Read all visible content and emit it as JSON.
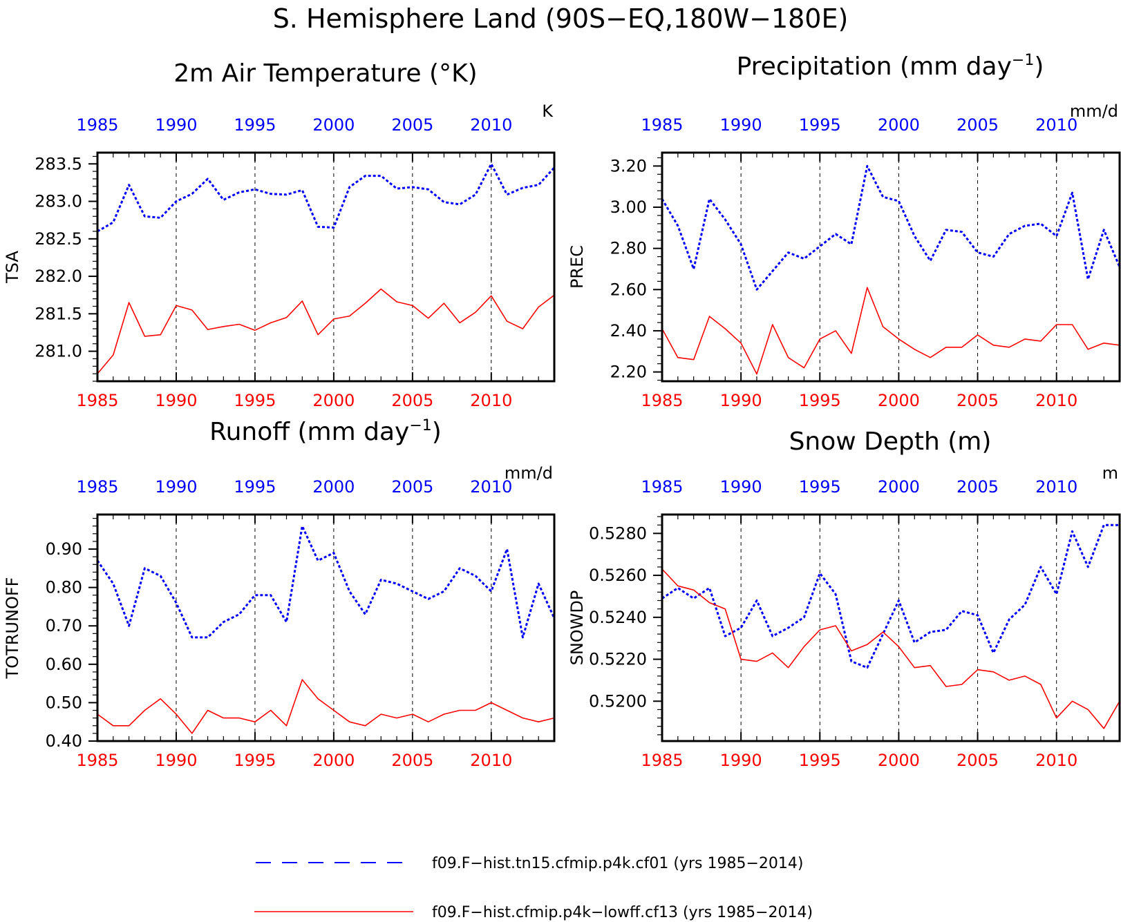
{
  "figure": {
    "title": "S. Hemisphere Land (90S−EQ,180W−180E)"
  },
  "colors": {
    "case1": "#0000ff",
    "case2": "#ff0000",
    "axis": "#000000"
  },
  "legend": {
    "case1": "f09.F−hist.tn15.cfmip.p4k.cf01 (yrs 1985−2014)",
    "case2": "f09.F−hist.cfmip.p4k−lowff.cf13 (yrs 1985−2014)"
  },
  "chart_data": [
    {
      "type": "line",
      "title": "2m Air Temperature (°K)",
      "title_sup": "",
      "title_suffix": "",
      "ylabel": "TSA",
      "units": "K",
      "xlim": [
        1985,
        2014
      ],
      "ylim": [
        280.6,
        283.65
      ],
      "yticks": [
        281.0,
        281.5,
        282.0,
        282.5,
        283.0,
        283.5
      ],
      "ytick_labels": [
        "281.0",
        "281.5",
        "282.0",
        "282.5",
        "283.0",
        "283.5"
      ],
      "yminor": 0.1,
      "xticks": [
        1985,
        1990,
        1995,
        2000,
        2005,
        2010
      ],
      "xtick_labels": [
        "1985",
        "1990",
        "1995",
        "2000",
        "2005",
        "2010"
      ],
      "x": [
        1985,
        1986,
        1987,
        1988,
        1989,
        1990,
        1991,
        1992,
        1993,
        1994,
        1995,
        1996,
        1997,
        1998,
        1999,
        2000,
        2001,
        2002,
        2003,
        2004,
        2005,
        2006,
        2007,
        2008,
        2009,
        2010,
        2011,
        2012,
        2013,
        2014
      ],
      "series": [
        {
          "name": "f09.F−hist.tn15.cfmip.p4k.cf01 (yrs 1985−2014)",
          "style": "dashed",
          "values": [
            282.6,
            282.72,
            283.22,
            282.8,
            282.78,
            283.0,
            283.1,
            283.3,
            283.02,
            283.12,
            283.16,
            283.1,
            283.09,
            283.15,
            282.66,
            282.65,
            283.19,
            283.34,
            283.34,
            283.17,
            283.19,
            283.16,
            282.99,
            282.96,
            283.09,
            283.5,
            283.09,
            283.18,
            283.22,
            283.45
          ]
        },
        {
          "name": "f09.F−hist.cfmip.p4k−lowff.cf13 (yrs 1985−2014)",
          "style": "solid",
          "values": [
            280.7,
            280.95,
            281.65,
            281.2,
            281.22,
            281.61,
            281.55,
            281.29,
            281.33,
            281.36,
            281.28,
            281.38,
            281.45,
            281.67,
            281.22,
            281.43,
            281.47,
            281.64,
            281.83,
            281.66,
            281.61,
            281.44,
            281.64,
            281.38,
            281.52,
            281.74,
            281.4,
            281.3,
            281.59,
            281.75
          ]
        }
      ]
    },
    {
      "type": "line",
      "title": "Precipitation (mm day",
      "title_sup": "−1",
      "title_suffix": ")",
      "ylabel": "PREC",
      "units": "mm/d",
      "xlim": [
        1985,
        2014
      ],
      "ylim": [
        2.155,
        3.265
      ],
      "yticks": [
        2.2,
        2.4,
        2.6,
        2.8,
        3.0,
        3.2
      ],
      "ytick_labels": [
        "2.20",
        "2.40",
        "2.60",
        "2.80",
        "3.00",
        "3.20"
      ],
      "yminor": 0.04,
      "xticks": [
        1985,
        1990,
        1995,
        2000,
        2005,
        2010
      ],
      "xtick_labels": [
        "1985",
        "1990",
        "1995",
        "2000",
        "2005",
        "2010"
      ],
      "x": [
        1985,
        1986,
        1987,
        1988,
        1989,
        1990,
        1991,
        1992,
        1993,
        1994,
        1995,
        1996,
        1997,
        1998,
        1999,
        2000,
        2001,
        2002,
        2003,
        2004,
        2005,
        2006,
        2007,
        2008,
        2009,
        2010,
        2011,
        2012,
        2013,
        2014
      ],
      "series": [
        {
          "name": "f09.F−hist.tn15.cfmip.p4k.cf01 (yrs 1985−2014)",
          "style": "dashed",
          "values": [
            3.04,
            2.91,
            2.7,
            3.04,
            2.94,
            2.82,
            2.6,
            2.69,
            2.78,
            2.75,
            2.81,
            2.87,
            2.82,
            3.2,
            3.05,
            3.03,
            2.86,
            2.74,
            2.89,
            2.88,
            2.78,
            2.76,
            2.87,
            2.91,
            2.92,
            2.86,
            3.07,
            2.65,
            2.89,
            2.71
          ]
        },
        {
          "name": "f09.F−hist.cfmip.p4k−lowff.cf13 (yrs 1985−2014)",
          "style": "solid",
          "values": [
            2.41,
            2.27,
            2.26,
            2.47,
            2.41,
            2.34,
            2.19,
            2.43,
            2.27,
            2.22,
            2.36,
            2.4,
            2.29,
            2.61,
            2.42,
            2.36,
            2.31,
            2.27,
            2.32,
            2.32,
            2.38,
            2.33,
            2.32,
            2.36,
            2.35,
            2.43,
            2.43,
            2.31,
            2.34,
            2.33
          ]
        }
      ]
    },
    {
      "type": "line",
      "title": "Runoff (mm day",
      "title_sup": "−1",
      "title_suffix": ")",
      "ylabel": "TOTRUNOFF",
      "units": "mm/d",
      "xlim": [
        1985,
        2014
      ],
      "ylim": [
        0.4,
        0.99
      ],
      "yticks": [
        0.4,
        0.5,
        0.6,
        0.7,
        0.8,
        0.9
      ],
      "ytick_labels": [
        "0.40",
        "0.50",
        "0.60",
        "0.70",
        "0.80",
        "0.90"
      ],
      "yminor": 0.02,
      "xticks": [
        1985,
        1990,
        1995,
        2000,
        2005,
        2010
      ],
      "xtick_labels": [
        "1985",
        "1990",
        "1995",
        "2000",
        "2005",
        "2010"
      ],
      "x": [
        1985,
        1986,
        1987,
        1988,
        1989,
        1990,
        1991,
        1992,
        1993,
        1994,
        1995,
        1996,
        1997,
        1998,
        1999,
        2000,
        2001,
        2002,
        2003,
        2004,
        2005,
        2006,
        2007,
        2008,
        2009,
        2010,
        2011,
        2012,
        2013,
        2014
      ],
      "series": [
        {
          "name": "f09.F−hist.tn15.cfmip.p4k.cf01 (yrs 1985−2014)",
          "style": "dashed",
          "values": [
            0.87,
            0.81,
            0.7,
            0.85,
            0.83,
            0.76,
            0.67,
            0.67,
            0.71,
            0.73,
            0.78,
            0.78,
            0.71,
            0.96,
            0.87,
            0.89,
            0.79,
            0.73,
            0.82,
            0.81,
            0.79,
            0.77,
            0.79,
            0.85,
            0.83,
            0.79,
            0.9,
            0.67,
            0.81,
            0.72
          ]
        },
        {
          "name": "f09.F−hist.cfmip.p4k−lowff.cf13 (yrs 1985−2014)",
          "style": "solid",
          "values": [
            0.47,
            0.44,
            0.44,
            0.48,
            0.51,
            0.47,
            0.42,
            0.48,
            0.46,
            0.46,
            0.45,
            0.48,
            0.44,
            0.56,
            0.51,
            0.48,
            0.45,
            0.44,
            0.47,
            0.46,
            0.47,
            0.45,
            0.47,
            0.48,
            0.48,
            0.5,
            0.48,
            0.46,
            0.45,
            0.46
          ]
        }
      ]
    },
    {
      "type": "line",
      "title": "Snow Depth (m)",
      "title_sup": "",
      "title_suffix": "",
      "ylabel": "SNOWDP",
      "units": "m",
      "xlim": [
        1985,
        2014
      ],
      "ylim": [
        0.5181,
        0.5289
      ],
      "yticks": [
        0.52,
        0.522,
        0.524,
        0.526,
        0.528
      ],
      "ytick_labels": [
        "0.5200",
        "0.5220",
        "0.5240",
        "0.5260",
        "0.5280"
      ],
      "yminor": 0.0004,
      "xticks": [
        1985,
        1990,
        1995,
        2000,
        2005,
        2010
      ],
      "xtick_labels": [
        "1985",
        "1990",
        "1995",
        "2000",
        "2005",
        "2010"
      ],
      "x": [
        1985,
        1986,
        1987,
        1988,
        1989,
        1990,
        1991,
        1992,
        1993,
        1994,
        1995,
        1996,
        1997,
        1998,
        1999,
        2000,
        2001,
        2002,
        2003,
        2004,
        2005,
        2006,
        2007,
        2008,
        2009,
        2010,
        2011,
        2012,
        2013,
        2014
      ],
      "series": [
        {
          "name": "f09.F−hist.tn15.cfmip.p4k.cf01 (yrs 1985−2014)",
          "style": "dashed",
          "values": [
            0.5249,
            0.5254,
            0.5249,
            0.5254,
            0.5231,
            0.5235,
            0.5248,
            0.5231,
            0.5235,
            0.524,
            0.5261,
            0.5251,
            0.5219,
            0.5216,
            0.5232,
            0.5248,
            0.5228,
            0.5233,
            0.5234,
            0.5243,
            0.5241,
            0.5223,
            0.5239,
            0.5246,
            0.5264,
            0.5251,
            0.5281,
            0.5264,
            0.5284,
            0.5284
          ]
        },
        {
          "name": "f09.F−hist.cfmip.p4k−lowff.cf13 (yrs 1985−2014)",
          "style": "solid",
          "values": [
            0.5263,
            0.5255,
            0.5253,
            0.5247,
            0.5244,
            0.522,
            0.5219,
            0.5223,
            0.5216,
            0.5226,
            0.5234,
            0.5236,
            0.5224,
            0.5227,
            0.5233,
            0.5226,
            0.5216,
            0.5217,
            0.5207,
            0.5208,
            0.5215,
            0.5214,
            0.521,
            0.5212,
            0.5208,
            0.5192,
            0.52,
            0.5196,
            0.5187,
            0.52
          ]
        }
      ]
    }
  ]
}
